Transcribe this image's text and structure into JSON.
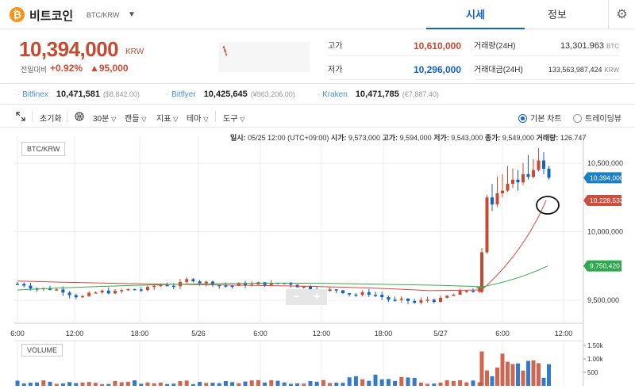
{
  "header": {
    "coin_symbol": "₿",
    "coin_name": "비트코인",
    "pair": "BTC/KRW",
    "caret": "▼",
    "tabs": [
      {
        "label": "시세"
      },
      {
        "label": "정보"
      }
    ],
    "settings_icon": "⚙"
  },
  "summary": {
    "price": "10,394,000",
    "price_unit": "KRW",
    "prev_label": "전일대비",
    "change_pct": "+0.92%",
    "change_diff": "▲95,000",
    "high_label": "고가",
    "high_value": "10,610,000",
    "low_label": "저가",
    "low_value": "10,296,000",
    "vol_label": "거래량(24H)",
    "vol_value": "13,301.963",
    "vol_unit": "BTC",
    "amount_label": "거래대금(24H)",
    "amount_value": "133,563,987,424",
    "amount_unit": "KRW"
  },
  "exchanges": [
    {
      "name": "Bitfinex",
      "price": "10,471,581",
      "krw": "($8,842.00)"
    },
    {
      "name": "Bitflyer",
      "price": "10,425,645",
      "krw": "(¥963,206.00)"
    },
    {
      "name": "Kraken",
      "price": "10,471,785",
      "krw": "(€7,887.40)"
    }
  ],
  "toolbar": {
    "reset": "초기화",
    "interval": "30분",
    "candle": "캔들",
    "indicator": "지표",
    "theme": "테마",
    "tools": "도구",
    "chart_basic": "기본 차트",
    "chart_trading": "트레이딩뷰"
  },
  "ohlc": {
    "time_label": "일시:",
    "time_value": "05/25 12:00 (UTC+09:00)",
    "open_label": "시가:",
    "open_value": "9,573,000",
    "high_label": "고가:",
    "high_value": "9,594,000",
    "low_label": "저가:",
    "low_value": "9,543,000",
    "close_label": "종가:",
    "close_value": "9,549,000",
    "vol_label": "거래량:",
    "vol_value": "126.747"
  },
  "chart": {
    "pair_tag": "BTC/KRW",
    "volume_tag": "VOLUME",
    "zoom_out": "−",
    "zoom_in": "+",
    "y_ticks": [
      {
        "label": "10,500,000",
        "value": 10500000
      },
      {
        "label": "10,000,000",
        "value": 10000000
      },
      {
        "label": "9,500,000",
        "value": 9500000
      }
    ],
    "x_ticks": [
      "6:00",
      "12:00",
      "18:00",
      "5/26",
      "6:00",
      "12:00",
      "18:00",
      "5/27",
      "6:00",
      "12:00"
    ],
    "price_tags": [
      {
        "label": "10,394,000",
        "value": 10394000,
        "color": "#1e7fc4"
      },
      {
        "label": "10,228,533",
        "value": 10228533,
        "color": "#c9503f"
      },
      {
        "label": "9,750,420",
        "value": 9750420,
        "color": "#2fa84f"
      }
    ],
    "vol_ticks": [
      {
        "label": "1.50k",
        "value": 1500
      },
      {
        "label": "1.00k",
        "value": 1000
      },
      {
        "label": "500",
        "value": 500
      }
    ],
    "colors": {
      "up": "#c84a31",
      "down": "#1261c4",
      "ma_short": "#d9473a",
      "ma_long": "#3ca84a",
      "annotation": "#111111"
    }
  }
}
